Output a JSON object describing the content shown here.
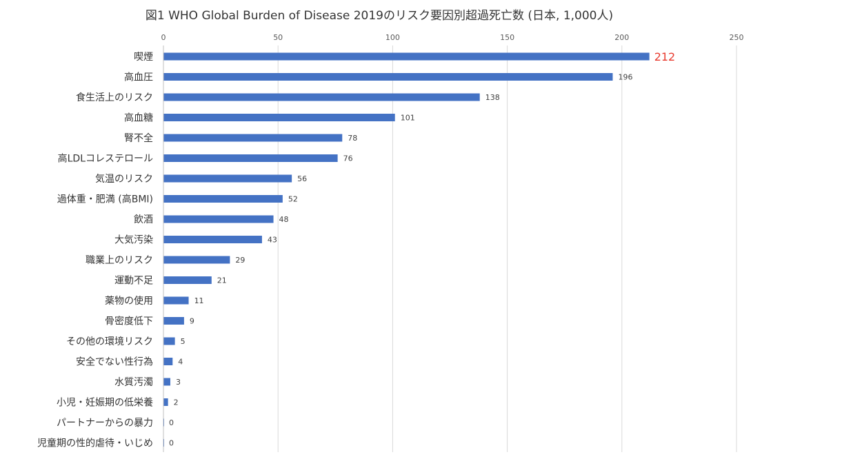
{
  "chart_data": {
    "type": "bar",
    "orientation": "horizontal",
    "title": "図1  WHO Global Burden of Disease 2019のリスク要因別超過死亡数 (日本, 1,000人)",
    "xlim": [
      0,
      250
    ],
    "xticks": [
      0,
      50,
      100,
      150,
      200,
      250
    ],
    "x_axis_position": "top",
    "grid": "vertical",
    "legend": "none",
    "colors": {
      "bar": "#4472C4",
      "highlight_label": "#E83A2E",
      "label": "#404040",
      "grid": "#D9D9D9"
    },
    "categories": [
      "喫煙",
      "高血圧",
      "食生活上のリスク",
      "高血糖",
      "腎不全",
      "高LDLコレステロール",
      "気温のリスク",
      "過体重・肥満 (高BMI)",
      "飲酒",
      "大気汚染",
      "職業上のリスク",
      "運動不足",
      "薬物の使用",
      "骨密度低下",
      "その他の環境リスク",
      "安全でない性行為",
      "水質汚濁",
      "小児・妊娠期の低栄養",
      "パートナーからの暴力",
      "児童期の性的虐待・いじめ"
    ],
    "values": [
      212,
      196,
      138,
      101,
      78,
      76,
      56,
      52,
      48,
      43,
      29,
      21,
      11,
      9,
      5,
      4,
      3,
      2,
      0,
      0
    ],
    "highlighted": [
      0
    ]
  }
}
